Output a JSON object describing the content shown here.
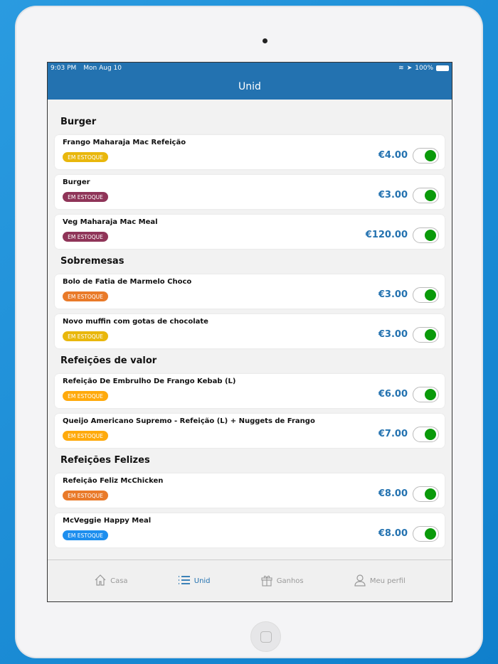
{
  "status": {
    "time": "9:03 PM",
    "date": "Mon Aug 10",
    "battery": "100%"
  },
  "header": {
    "title": "Unid"
  },
  "colors": {
    "brand": "#2372b0",
    "toggle_on": "#0a9a0a"
  },
  "sections": [
    {
      "title": "Burger",
      "items": [
        {
          "name": "Frango Maharaja Mac Refeição",
          "badge": "EM ESTOQUE",
          "badge_color": "#e8b400",
          "price": "€4.00",
          "enabled": true
        },
        {
          "name": "Burger",
          "badge": "EM ESTOQUE",
          "badge_color": "#8a2a50",
          "price": "€3.00",
          "enabled": true
        },
        {
          "name": "Veg Maharaja Mac Meal",
          "badge": "EM ESTOQUE",
          "badge_color": "#8a2a50",
          "price": "€120.00",
          "enabled": true
        }
      ]
    },
    {
      "title": "Sobremesas",
      "items": [
        {
          "name": "Bolo de Fatia de Marmelo Choco",
          "badge": "EM ESTOQUE",
          "badge_color": "#e8731e",
          "price": "€3.00",
          "enabled": true
        },
        {
          "name": "Novo muffin com gotas de chocolate",
          "badge": "EM ESTOQUE",
          "badge_color": "#e8b400",
          "price": "€3.00",
          "enabled": true
        }
      ]
    },
    {
      "title": "Refeições de valor",
      "items": [
        {
          "name": "Refeição De Embrulho De Frango Kebab (L)",
          "badge": "EM ESTOQUE",
          "badge_color": "#ffa600",
          "price": "€6.00",
          "enabled": true
        },
        {
          "name": "Queijo Americano Supremo - Refeição (L) + Nuggets de Frango",
          "badge": "EM ESTOQUE",
          "badge_color": "#ffa600",
          "price": "€7.00",
          "enabled": true
        }
      ]
    },
    {
      "title": "Refeições Felizes",
      "items": [
        {
          "name": "Refeição Feliz McChicken",
          "badge": "EM ESTOQUE",
          "badge_color": "#e8731e",
          "price": "€8.00",
          "enabled": true
        },
        {
          "name": "McVeggie Happy Meal",
          "badge": "EM ESTOQUE",
          "badge_color": "#1188ee",
          "price": "€8.00",
          "enabled": true
        }
      ]
    }
  ],
  "tabs": [
    {
      "label": "Casa",
      "icon": "home-icon",
      "active": false
    },
    {
      "label": "Unid",
      "icon": "list-icon",
      "active": true
    },
    {
      "label": "Ganhos",
      "icon": "gift-icon",
      "active": false
    },
    {
      "label": "Meu perfil",
      "icon": "user-icon",
      "active": false
    }
  ]
}
